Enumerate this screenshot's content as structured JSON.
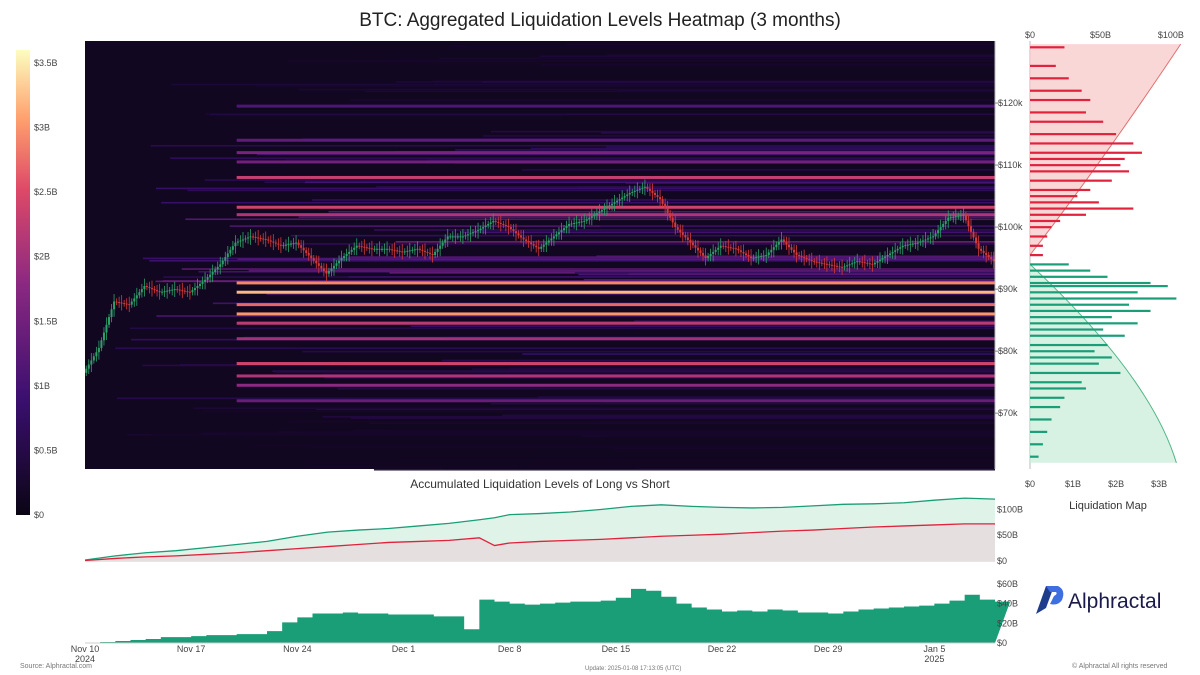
{
  "title": "BTC: Aggregated Liquidation Levels Heatmap (3 months)",
  "colors": {
    "heat_low": "#120720",
    "heat_mid": "#6a1fa0",
    "heat_high": "#ff8c1a",
    "heat_max": "#ffe85a",
    "short": "#e0223c",
    "long": "#1a9e78",
    "candle_up": "#2ea06a",
    "candle_down": "#d43a3a"
  },
  "chart_data": [
    {
      "type": "heatmap",
      "title": "BTC: Aggregated Liquidation Levels Heatmap (3 months)",
      "colorbar": {
        "ticks": [
          "$0",
          "$0.5B",
          "$1B",
          "$1.5B",
          "$2B",
          "$2.5B",
          "$3B",
          "$3.5B"
        ],
        "values": [
          0,
          0.5,
          1,
          1.5,
          2,
          2.5,
          3,
          3.5
        ],
        "max": 3.6
      },
      "yaxis": {
        "ticks": [
          "$70k",
          "$80k",
          "$90k",
          "$100k",
          "$110k",
          "$120k"
        ],
        "values": [
          70000,
          80000,
          90000,
          100000,
          110000,
          120000
        ],
        "range": [
          61000,
          130000
        ]
      },
      "xaxis": {
        "ticks": [
          "Nov 10\n2024",
          "Nov 17",
          "Nov 24",
          "Dec 1",
          "Dec 8",
          "Dec 15",
          "Dec 22",
          "Dec 29",
          "Jan 5\n2025"
        ],
        "values": [
          0,
          7,
          14,
          21,
          28,
          35,
          42,
          49,
          56
        ],
        "range": [
          0,
          60
        ]
      },
      "price_series": {
        "name": "",
        "x": [
          0,
          1,
          2,
          3,
          4,
          5,
          6,
          7,
          8,
          9,
          10,
          11,
          12,
          13,
          14,
          15,
          16,
          17,
          18,
          19,
          20,
          21,
          22,
          23,
          24,
          25,
          26,
          27,
          28,
          29,
          30,
          31,
          32,
          33,
          34,
          35,
          36,
          37,
          38,
          39,
          40,
          41,
          42,
          43,
          44,
          45,
          46,
          47,
          48,
          49,
          50,
          51,
          52,
          53,
          54,
          55,
          56,
          57,
          58,
          59,
          60
        ],
        "y": [
          76500,
          80500,
          88000,
          87500,
          90500,
          89500,
          90000,
          89500,
          91500,
          94000,
          97500,
          98500,
          98000,
          97000,
          97500,
          95000,
          92500,
          95000,
          97000,
          96500,
          96500,
          96000,
          96500,
          95500,
          98500,
          98500,
          99500,
          101000,
          100000,
          98000,
          96500,
          98500,
          100500,
          101000,
          102500,
          104000,
          105500,
          106500,
          104500,
          100000,
          97500,
          95000,
          97000,
          96500,
          95000,
          95500,
          98000,
          95500,
          94500,
          94000,
          93500,
          94500,
          94000,
          95500,
          97000,
          97500,
          98500,
          101500,
          102000,
          96500,
          94500
        ]
      },
      "bands": [
        {
          "y": 119500,
          "v": 1.1
        },
        {
          "y": 114000,
          "v": 1.3
        },
        {
          "y": 112000,
          "v": 1.6
        },
        {
          "y": 110500,
          "v": 1.5
        },
        {
          "y": 108000,
          "v": 2.3
        },
        {
          "y": 103200,
          "v": 2.4
        },
        {
          "y": 102000,
          "v": 2.1
        },
        {
          "y": 91000,
          "v": 2.9
        },
        {
          "y": 89500,
          "v": 3.2
        },
        {
          "y": 87500,
          "v": 2.7
        },
        {
          "y": 86000,
          "v": 3.0
        },
        {
          "y": 84500,
          "v": 2.2
        },
        {
          "y": 82000,
          "v": 2.0
        },
        {
          "y": 78000,
          "v": 2.4
        },
        {
          "y": 76000,
          "v": 2.1
        },
        {
          "y": 74500,
          "v": 1.8
        },
        {
          "y": 72000,
          "v": 1.4
        }
      ]
    },
    {
      "type": "bar",
      "title": "",
      "xlabel": "Liquidation Map",
      "top_ticks": [
        "$0",
        "$50B",
        "$100B"
      ],
      "top_values": [
        0,
        50,
        100
      ],
      "bottom_ticks": [
        "$0",
        "$1B",
        "$2B",
        "$3B"
      ],
      "bottom_values": [
        0,
        1,
        2,
        3
      ],
      "xlim": [
        0,
        3.6
      ],
      "series": [
        {
          "values_short": [
            [
              129000,
              0.8
            ],
            [
              126000,
              0.6
            ],
            [
              124000,
              0.9
            ],
            [
              122000,
              1.2
            ],
            [
              120500,
              1.4
            ],
            [
              118500,
              1.3
            ],
            [
              117000,
              1.7
            ],
            [
              115000,
              2.0
            ],
            [
              113500,
              2.4
            ],
            [
              112000,
              2.6
            ],
            [
              111000,
              2.2
            ],
            [
              110000,
              2.1
            ],
            [
              109000,
              2.3
            ],
            [
              107500,
              1.9
            ],
            [
              106000,
              1.4
            ],
            [
              105000,
              1.1
            ],
            [
              104000,
              1.6
            ],
            [
              103000,
              2.4
            ],
            [
              102000,
              1.3
            ],
            [
              101000,
              0.7
            ],
            [
              100000,
              0.5
            ],
            [
              98500,
              0.4
            ],
            [
              97000,
              0.3
            ],
            [
              95500,
              0.3
            ]
          ]
        },
        {
          "values_long": [
            [
              94000,
              0.9
            ],
            [
              93000,
              1.4
            ],
            [
              92000,
              1.8
            ],
            [
              91000,
              2.8
            ],
            [
              90500,
              3.2
            ],
            [
              89500,
              2.5
            ],
            [
              88500,
              3.4
            ],
            [
              87500,
              2.3
            ],
            [
              86500,
              2.8
            ],
            [
              85500,
              1.9
            ],
            [
              84500,
              2.5
            ],
            [
              83500,
              1.7
            ],
            [
              82500,
              2.2
            ],
            [
              81000,
              1.8
            ],
            [
              80000,
              1.5
            ],
            [
              79000,
              1.9
            ],
            [
              78000,
              1.6
            ],
            [
              76500,
              2.1
            ],
            [
              75000,
              1.2
            ],
            [
              74000,
              1.3
            ],
            [
              72500,
              0.8
            ],
            [
              71000,
              0.7
            ],
            [
              69000,
              0.5
            ],
            [
              67000,
              0.4
            ],
            [
              65000,
              0.3
            ],
            [
              63000,
              0.2
            ]
          ]
        }
      ]
    },
    {
      "type": "line",
      "title": "Accumulated Liquidation Levels of Long vs Short",
      "ylim": [
        0,
        130
      ],
      "yticks": [
        "$0",
        "$50B",
        "$100B"
      ],
      "ytick_values": [
        0,
        50,
        100
      ],
      "x": [
        0,
        2,
        4,
        6,
        8,
        10,
        12,
        14,
        16,
        18,
        20,
        22,
        24,
        26,
        27,
        28,
        30,
        32,
        34,
        36,
        38,
        40,
        42,
        44,
        46,
        48,
        50,
        52,
        54,
        56,
        58,
        60
      ],
      "series": [
        {
          "name": "",
          "values": [
            2,
            10,
            16,
            20,
            26,
            32,
            38,
            48,
            56,
            60,
            63,
            68,
            73,
            80,
            84,
            90,
            92,
            95,
            100,
            106,
            109,
            106,
            104,
            103,
            104,
            107,
            110,
            111,
            113,
            118,
            122,
            120
          ]
        },
        {
          "name": "",
          "values": [
            1,
            5,
            8,
            10,
            13,
            16,
            20,
            24,
            28,
            32,
            36,
            38,
            40,
            45,
            30,
            35,
            38,
            40,
            42,
            45,
            48,
            50,
            52,
            55,
            58,
            60,
            63,
            66,
            68,
            70,
            72,
            72
          ]
        }
      ]
    },
    {
      "type": "area",
      "title": "",
      "ylim": [
        0,
        66
      ],
      "yticks": [
        "$0",
        "$20B",
        "$40B",
        "$60B"
      ],
      "ytick_values": [
        0,
        20,
        40,
        60
      ],
      "x": [
        0,
        1,
        2,
        3,
        4,
        5,
        6,
        7,
        8,
        9,
        10,
        11,
        12,
        13,
        14,
        15,
        16,
        17,
        18,
        19,
        20,
        21,
        22,
        23,
        24,
        25,
        26,
        27,
        28,
        29,
        30,
        31,
        32,
        33,
        34,
        35,
        36,
        37,
        38,
        39,
        40,
        41,
        42,
        43,
        44,
        45,
        46,
        47,
        48,
        49,
        50,
        51,
        52,
        53,
        54,
        55,
        56,
        57,
        58,
        59,
        60
      ],
      "values": [
        0,
        1,
        2,
        3,
        4,
        6,
        6,
        7,
        8,
        8,
        9,
        9,
        12,
        21,
        26,
        30,
        30,
        31,
        30,
        30,
        29,
        29,
        29,
        27,
        27,
        14,
        44,
        42,
        40,
        39,
        40,
        41,
        42,
        42,
        43,
        46,
        55,
        53,
        47,
        40,
        36,
        34,
        32,
        33,
        32,
        34,
        33,
        31,
        31,
        30,
        32,
        34,
        35,
        36,
        37,
        38,
        40,
        43,
        49,
        44,
        42
      ]
    }
  ],
  "logo": {
    "text": "Alphractal"
  },
  "footer": {
    "source": "Source: Alphractal.com",
    "update": "Update: 2025-01-08 17:13:05 (UTC)",
    "rights": "© Alphractal All rights reserved"
  }
}
